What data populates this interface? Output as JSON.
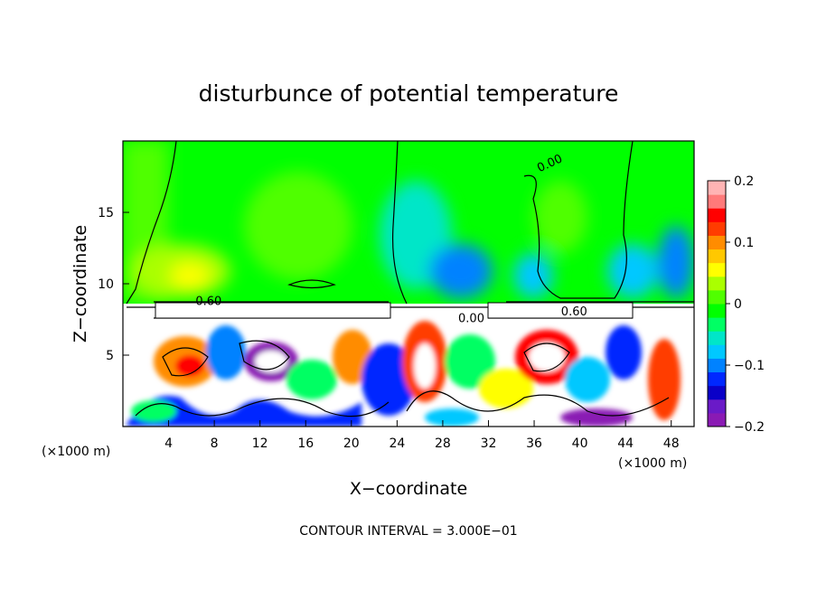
{
  "chart_data": {
    "type": "heatmap",
    "title": "disturbunce of potential temperature",
    "xlabel": "X−coordinate",
    "ylabel": "Z−coordinate",
    "x_units_left": "(×1000 m)",
    "x_units_right": "(×1000 m)",
    "xlim": [
      0,
      50
    ],
    "ylim": [
      0,
      20
    ],
    "x_ticks": [
      4,
      8,
      12,
      16,
      20,
      24,
      28,
      32,
      36,
      40,
      44,
      48
    ],
    "y_ticks": [
      5,
      10,
      15
    ],
    "colorbar": {
      "range": [
        -0.2,
        0.2
      ],
      "tick_values": [
        0.2,
        0.1,
        0,
        -0.1,
        -0.2
      ],
      "tick_labels": [
        "0.2",
        "0.1",
        "0",
        "−0.1",
        "−0.2"
      ],
      "colors": [
        "#8a1ab4",
        "#6a1ac8",
        "#0a00c8",
        "#0028ff",
        "#0082ff",
        "#00c8ff",
        "#00e6c8",
        "#00ff64",
        "#00ff00",
        "#50ff00",
        "#aaff00",
        "#ffff00",
        "#ffc800",
        "#ff8c00",
        "#ff3c00",
        "#ff0000",
        "#ff7a7a",
        "#ffb4b4"
      ]
    },
    "contour_labels": [
      {
        "text": "0.00",
        "x": 37.5,
        "z": 18.2
      },
      {
        "text": "0.60",
        "x": 7.5,
        "z": 8.5
      },
      {
        "text": "0.00",
        "x": 30.5,
        "z": 7.3
      },
      {
        "text": "0.60",
        "x": 39.5,
        "z": 7.8
      }
    ],
    "footer": "CONTOUR INTERVAL = 3.000E−01"
  }
}
